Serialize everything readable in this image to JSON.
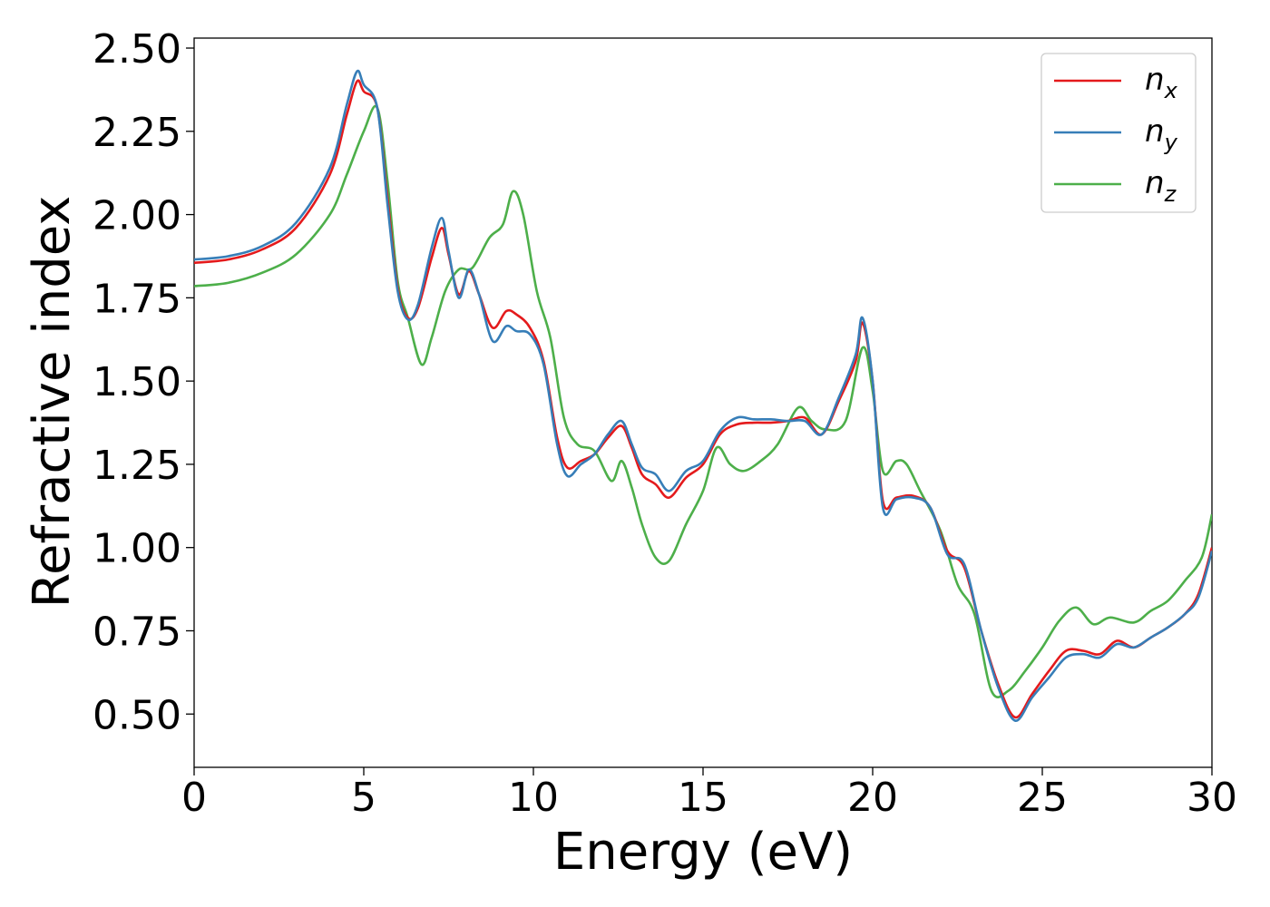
{
  "chart_data": {
    "type": "line",
    "xlabel": "Energy (eV)",
    "ylabel": "Refractive index",
    "xlim": [
      0,
      30
    ],
    "ylim": [
      0.34,
      2.53
    ],
    "x_ticks": [
      "0",
      "5",
      "10",
      "15",
      "20",
      "25",
      "30"
    ],
    "y_ticks": [
      "0.50",
      "0.75",
      "1.00",
      "1.25",
      "1.50",
      "1.75",
      "2.00",
      "2.25",
      "2.50"
    ],
    "grid": false,
    "legend_position": "top-right",
    "series": [
      {
        "name": "n",
        "subscript": "x",
        "color": "#e41a1c",
        "points": [
          [
            0,
            1.855
          ],
          [
            1,
            1.865
          ],
          [
            2,
            1.895
          ],
          [
            3,
            1.96
          ],
          [
            4,
            2.12
          ],
          [
            4.5,
            2.3
          ],
          [
            4.8,
            2.4
          ],
          [
            5,
            2.37
          ],
          [
            5.4,
            2.32
          ],
          [
            5.7,
            2.05
          ],
          [
            6,
            1.78
          ],
          [
            6.3,
            1.69
          ],
          [
            6.6,
            1.72
          ],
          [
            7,
            1.87
          ],
          [
            7.3,
            1.96
          ],
          [
            7.5,
            1.88
          ],
          [
            7.8,
            1.76
          ],
          [
            8.1,
            1.83
          ],
          [
            8.4,
            1.76
          ],
          [
            8.8,
            1.66
          ],
          [
            9.2,
            1.71
          ],
          [
            9.5,
            1.7
          ],
          [
            9.9,
            1.66
          ],
          [
            10.3,
            1.56
          ],
          [
            10.7,
            1.33
          ],
          [
            11.0,
            1.24
          ],
          [
            11.4,
            1.26
          ],
          [
            11.8,
            1.28
          ],
          [
            12.2,
            1.33
          ],
          [
            12.6,
            1.365
          ],
          [
            12.9,
            1.3
          ],
          [
            13.2,
            1.22
          ],
          [
            13.6,
            1.19
          ],
          [
            14.0,
            1.15
          ],
          [
            14.5,
            1.21
          ],
          [
            15.0,
            1.25
          ],
          [
            15.5,
            1.34
          ],
          [
            16.0,
            1.37
          ],
          [
            16.5,
            1.375
          ],
          [
            17.0,
            1.375
          ],
          [
            17.5,
            1.38
          ],
          [
            18.0,
            1.39
          ],
          [
            18.5,
            1.34
          ],
          [
            19.0,
            1.44
          ],
          [
            19.5,
            1.56
          ],
          [
            19.7,
            1.675
          ],
          [
            20.0,
            1.5
          ],
          [
            20.3,
            1.14
          ],
          [
            20.7,
            1.15
          ],
          [
            21.2,
            1.155
          ],
          [
            21.7,
            1.12
          ],
          [
            22.2,
            0.99
          ],
          [
            22.7,
            0.94
          ],
          [
            23.2,
            0.75
          ],
          [
            23.7,
            0.59
          ],
          [
            24.2,
            0.49
          ],
          [
            24.7,
            0.56
          ],
          [
            25.2,
            0.63
          ],
          [
            25.7,
            0.69
          ],
          [
            26.2,
            0.69
          ],
          [
            26.7,
            0.68
          ],
          [
            27.2,
            0.72
          ],
          [
            27.7,
            0.7
          ],
          [
            28.2,
            0.73
          ],
          [
            28.7,
            0.76
          ],
          [
            29.2,
            0.8
          ],
          [
            29.6,
            0.86
          ],
          [
            30,
            1.0
          ]
        ]
      },
      {
        "name": "n",
        "subscript": "y",
        "color": "#377eb8",
        "points": [
          [
            0,
            1.865
          ],
          [
            1,
            1.875
          ],
          [
            2,
            1.905
          ],
          [
            3,
            1.975
          ],
          [
            4,
            2.14
          ],
          [
            4.5,
            2.33
          ],
          [
            4.8,
            2.43
          ],
          [
            5,
            2.39
          ],
          [
            5.4,
            2.32
          ],
          [
            5.7,
            2.03
          ],
          [
            6,
            1.77
          ],
          [
            6.3,
            1.685
          ],
          [
            6.6,
            1.73
          ],
          [
            7,
            1.9
          ],
          [
            7.3,
            1.99
          ],
          [
            7.5,
            1.89
          ],
          [
            7.8,
            1.75
          ],
          [
            8.1,
            1.835
          ],
          [
            8.4,
            1.76
          ],
          [
            8.8,
            1.62
          ],
          [
            9.2,
            1.665
          ],
          [
            9.5,
            1.65
          ],
          [
            9.9,
            1.64
          ],
          [
            10.3,
            1.55
          ],
          [
            10.7,
            1.31
          ],
          [
            11.0,
            1.215
          ],
          [
            11.4,
            1.25
          ],
          [
            11.8,
            1.28
          ],
          [
            12.2,
            1.34
          ],
          [
            12.6,
            1.38
          ],
          [
            12.9,
            1.31
          ],
          [
            13.2,
            1.24
          ],
          [
            13.6,
            1.22
          ],
          [
            14.0,
            1.17
          ],
          [
            14.5,
            1.23
          ],
          [
            15.0,
            1.26
          ],
          [
            15.5,
            1.35
          ],
          [
            16.0,
            1.39
          ],
          [
            16.5,
            1.385
          ],
          [
            17.0,
            1.385
          ],
          [
            17.5,
            1.38
          ],
          [
            18.0,
            1.38
          ],
          [
            18.5,
            1.34
          ],
          [
            19.0,
            1.45
          ],
          [
            19.5,
            1.58
          ],
          [
            19.7,
            1.69
          ],
          [
            20.0,
            1.5
          ],
          [
            20.3,
            1.12
          ],
          [
            20.7,
            1.145
          ],
          [
            21.2,
            1.15
          ],
          [
            21.7,
            1.12
          ],
          [
            22.2,
            0.98
          ],
          [
            22.7,
            0.95
          ],
          [
            23.2,
            0.75
          ],
          [
            23.7,
            0.58
          ],
          [
            24.2,
            0.48
          ],
          [
            24.7,
            0.55
          ],
          [
            25.2,
            0.61
          ],
          [
            25.7,
            0.67
          ],
          [
            26.2,
            0.68
          ],
          [
            26.7,
            0.67
          ],
          [
            27.2,
            0.71
          ],
          [
            27.7,
            0.7
          ],
          [
            28.2,
            0.73
          ],
          [
            28.7,
            0.76
          ],
          [
            29.2,
            0.8
          ],
          [
            29.6,
            0.85
          ],
          [
            30,
            0.99
          ]
        ]
      },
      {
        "name": "n",
        "subscript": "z",
        "color": "#4daf4a",
        "points": [
          [
            0,
            1.785
          ],
          [
            1,
            1.795
          ],
          [
            2,
            1.825
          ],
          [
            3,
            1.88
          ],
          [
            4,
            2.0
          ],
          [
            4.5,
            2.12
          ],
          [
            5,
            2.25
          ],
          [
            5.4,
            2.32
          ],
          [
            5.7,
            2.1
          ],
          [
            6,
            1.8
          ],
          [
            6.3,
            1.69
          ],
          [
            6.7,
            1.55
          ],
          [
            7.0,
            1.63
          ],
          [
            7.4,
            1.77
          ],
          [
            7.8,
            1.835
          ],
          [
            8.2,
            1.84
          ],
          [
            8.7,
            1.93
          ],
          [
            9.1,
            1.97
          ],
          [
            9.4,
            2.07
          ],
          [
            9.7,
            2.0
          ],
          [
            10.1,
            1.77
          ],
          [
            10.5,
            1.63
          ],
          [
            10.9,
            1.39
          ],
          [
            11.3,
            1.31
          ],
          [
            11.8,
            1.29
          ],
          [
            12.3,
            1.2
          ],
          [
            12.6,
            1.26
          ],
          [
            12.9,
            1.18
          ],
          [
            13.2,
            1.07
          ],
          [
            13.6,
            0.97
          ],
          [
            14.0,
            0.96
          ],
          [
            14.5,
            1.07
          ],
          [
            15.0,
            1.17
          ],
          [
            15.4,
            1.3
          ],
          [
            15.8,
            1.25
          ],
          [
            16.2,
            1.23
          ],
          [
            16.7,
            1.26
          ],
          [
            17.2,
            1.31
          ],
          [
            17.8,
            1.42
          ],
          [
            18.2,
            1.38
          ],
          [
            18.6,
            1.355
          ],
          [
            19.2,
            1.38
          ],
          [
            19.7,
            1.6
          ],
          [
            20.0,
            1.47
          ],
          [
            20.3,
            1.23
          ],
          [
            20.7,
            1.26
          ],
          [
            21.0,
            1.25
          ],
          [
            21.4,
            1.17
          ],
          [
            22.0,
            1.05
          ],
          [
            22.5,
            0.89
          ],
          [
            23.0,
            0.8
          ],
          [
            23.5,
            0.57
          ],
          [
            24.0,
            0.57
          ],
          [
            24.5,
            0.63
          ],
          [
            25.0,
            0.7
          ],
          [
            25.5,
            0.78
          ],
          [
            26.0,
            0.82
          ],
          [
            26.5,
            0.77
          ],
          [
            27.0,
            0.79
          ],
          [
            27.7,
            0.775
          ],
          [
            28.2,
            0.81
          ],
          [
            28.7,
            0.84
          ],
          [
            29.2,
            0.9
          ],
          [
            29.7,
            0.97
          ],
          [
            30,
            1.1
          ]
        ]
      }
    ]
  }
}
